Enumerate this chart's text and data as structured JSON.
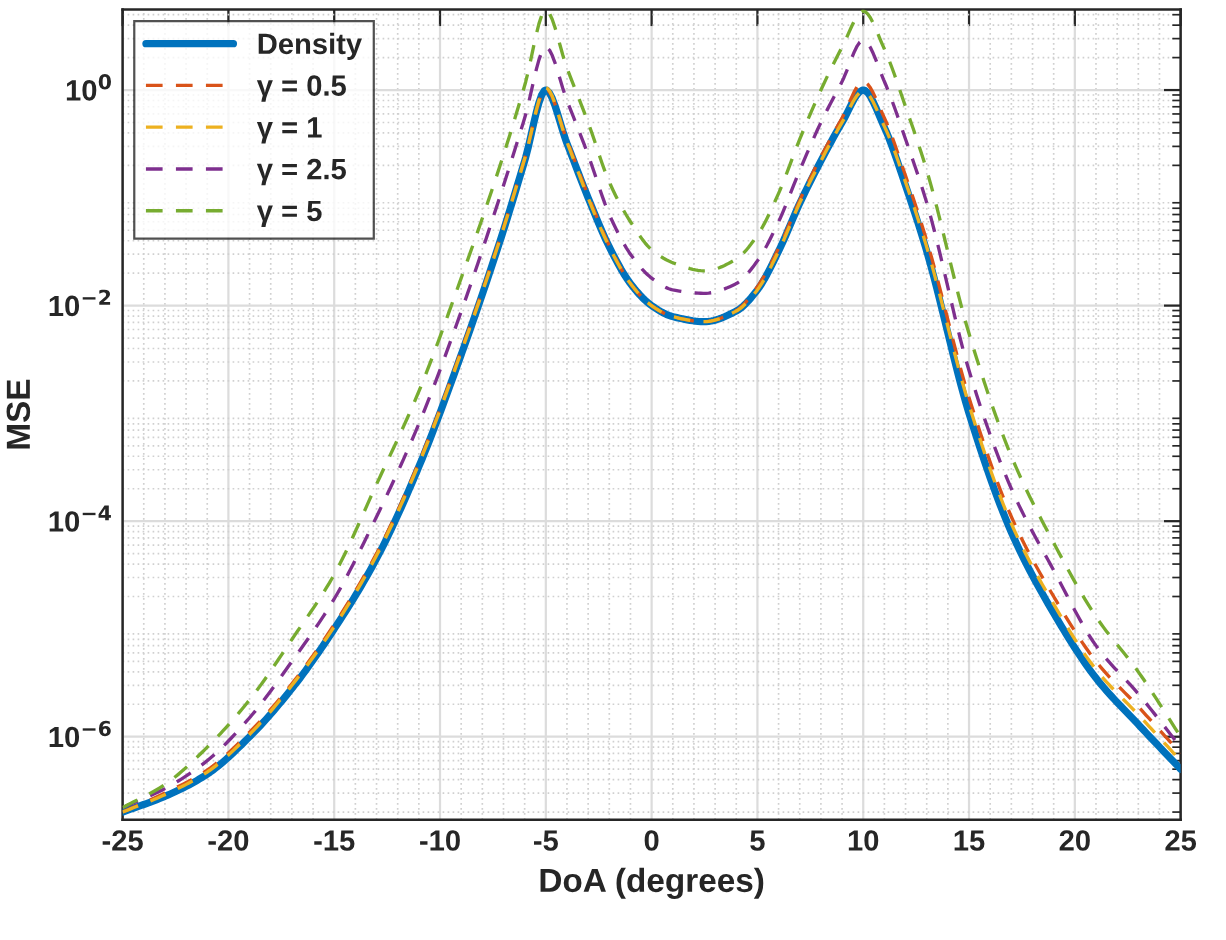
{
  "chart_data": {
    "type": "line",
    "xlabel": "DoA (degrees)",
    "ylabel": "MSE",
    "log": "y",
    "grid": true,
    "legend": "top left",
    "x": [
      -25,
      -23,
      -21,
      -19,
      -17,
      -15,
      -13,
      -11,
      -9,
      -7,
      -6,
      -5,
      -4,
      -3,
      -2,
      -1,
      0,
      1,
      2.5,
      4,
      5,
      6,
      7,
      8,
      9,
      10,
      11,
      12,
      13,
      15,
      17,
      19,
      21,
      23,
      25
    ],
    "xlim": [
      -25,
      25
    ],
    "xticks": [
      -25,
      -20,
      -15,
      -10,
      -5,
      0,
      5,
      10,
      15,
      20,
      25
    ],
    "ylim": [
      1.7e-07,
      5.6
    ],
    "yticks": [
      {
        "value": 1e-06,
        "label": "10$^{−6}$"
      },
      {
        "value": 0.0001,
        "label": "10$^{−4}$"
      },
      {
        "value": 0.01,
        "label": "10$^{−2}$"
      },
      {
        "value": 1,
        "label": "10$^{0}$"
      }
    ],
    "series": [
      {
        "name": "Density",
        "color": "#0072bd",
        "line_style": "solid",
        "values": [
          2e-07,
          2.8e-07,
          4.5e-07,
          1e-06,
          2.8e-06,
          1e-05,
          4.5e-05,
          0.00032,
          0.0035,
          0.05,
          0.22,
          1.0,
          0.32,
          0.1,
          0.035,
          0.016,
          0.01,
          0.0079,
          0.0071,
          0.0089,
          0.014,
          0.032,
          0.089,
          0.22,
          0.5,
          1.0,
          0.45,
          0.13,
          0.032,
          0.001,
          7.9e-05,
          1.4e-05,
          3.5e-06,
          1.3e-06,
          5e-07
        ]
      },
      {
        "name": "γ = 0.5",
        "color": "#d95319",
        "line_style": "dashed",
        "values": [
          2e-07,
          3e-07,
          4.9e-07,
          1.1e-06,
          3.1e-06,
          1.1e-05,
          5e-05,
          0.00035,
          0.0038,
          0.053,
          0.23,
          1.02,
          0.34,
          0.105,
          0.036,
          0.016,
          0.01,
          0.0079,
          0.0071,
          0.009,
          0.015,
          0.034,
          0.095,
          0.24,
          0.55,
          1.2,
          0.55,
          0.16,
          0.04,
          0.0014,
          0.00011,
          2e-05,
          5e-06,
          1.9e-06,
          7e-07
        ]
      },
      {
        "name": "γ = 1",
        "color": "#edb120",
        "line_style": "dashed",
        "values": [
          2e-07,
          2.9e-07,
          4.7e-07,
          1.05e-06,
          3e-06,
          1.05e-05,
          4.8e-05,
          0.00034,
          0.0037,
          0.052,
          0.23,
          1.05,
          0.33,
          0.1,
          0.035,
          0.016,
          0.01,
          0.0079,
          0.0071,
          0.0089,
          0.014,
          0.032,
          0.09,
          0.22,
          0.5,
          0.98,
          0.46,
          0.14,
          0.035,
          0.0012,
          9.5e-05,
          1.7e-05,
          4.2e-06,
          1.6e-06,
          6e-07
        ]
      },
      {
        "name": "γ = 2.5",
        "color": "#7e2f8e",
        "line_style": "dashed",
        "values": [
          2.2e-07,
          3.3e-07,
          6e-07,
          1.5e-06,
          5e-06,
          1.9e-05,
          0.00011,
          0.0008,
          0.0088,
          0.13,
          0.55,
          2.5,
          0.8,
          0.25,
          0.07,
          0.03,
          0.018,
          0.014,
          0.013,
          0.016,
          0.026,
          0.06,
          0.18,
          0.5,
          1.2,
          2.9,
          1.2,
          0.35,
          0.09,
          0.0025,
          0.0002,
          3.5e-05,
          7e-06,
          2.5e-06,
          8e-07
        ]
      },
      {
        "name": "γ = 5",
        "color": "#77ac30",
        "line_style": "dashed",
        "values": [
          2.2e-07,
          3.6e-07,
          8e-07,
          2.2e-06,
          8e-06,
          3.2e-05,
          0.00022,
          0.0016,
          0.018,
          0.25,
          1.1,
          5.5,
          1.6,
          0.5,
          0.14,
          0.06,
          0.033,
          0.025,
          0.021,
          0.027,
          0.045,
          0.11,
          0.35,
          1.0,
          2.5,
          5.4,
          2.4,
          0.7,
          0.18,
          0.0055,
          0.0004,
          6.3e-05,
          1.3e-05,
          4e-06,
          1e-06
        ]
      }
    ]
  }
}
